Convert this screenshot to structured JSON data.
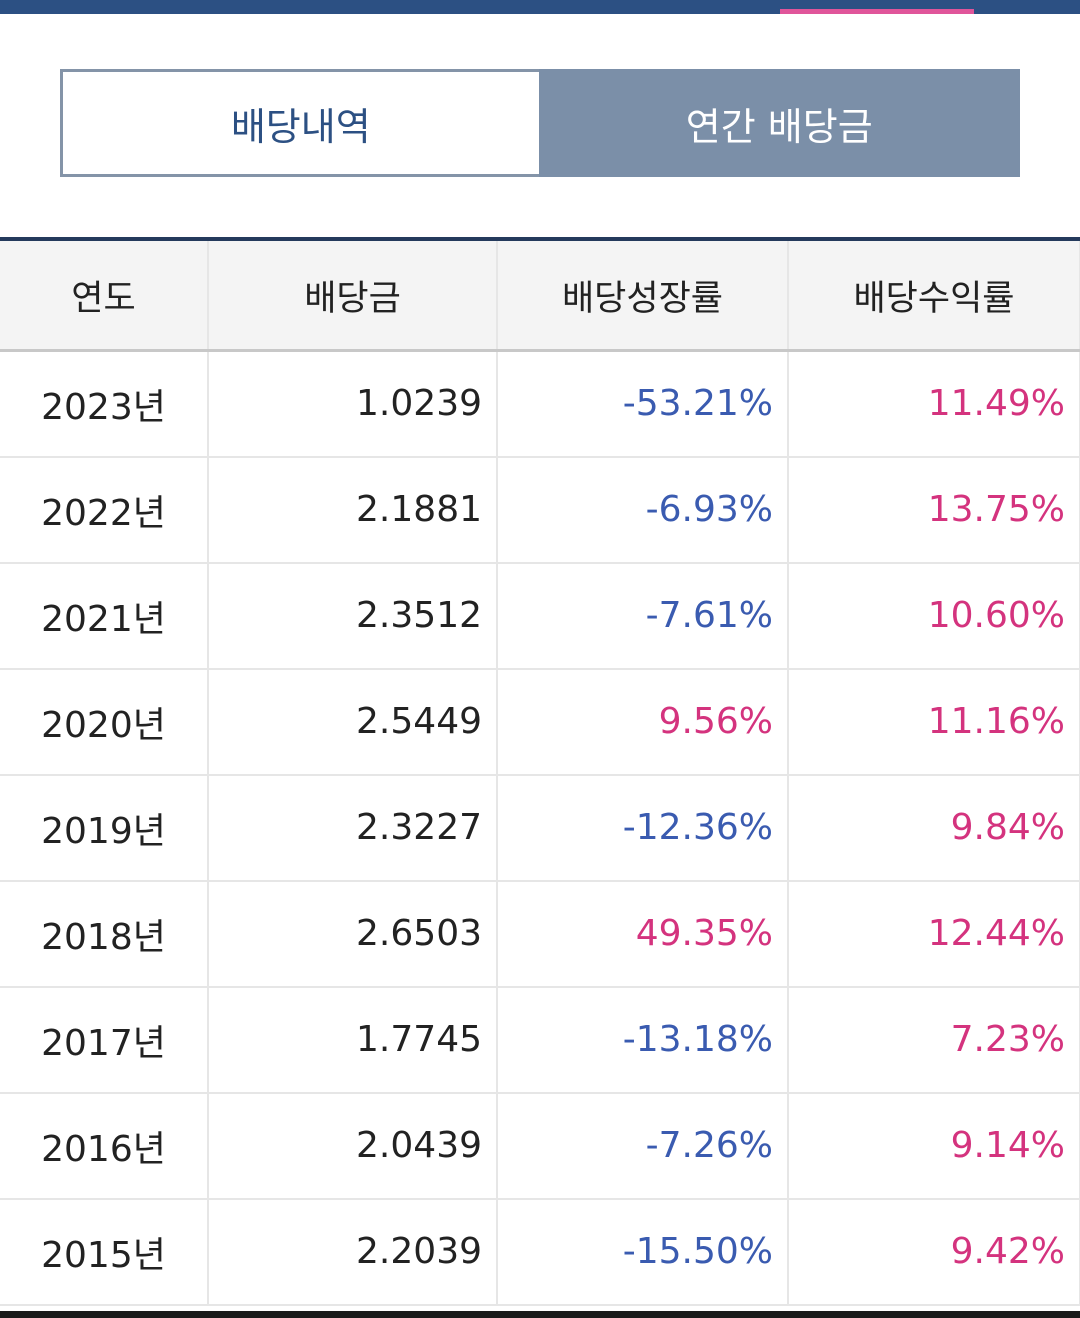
{
  "tabs": [
    {
      "label": "배당내역",
      "active": false
    },
    {
      "label": "연간 배당금",
      "active": true
    }
  ],
  "table": {
    "headers": [
      "연도",
      "배당금",
      "배당성장률",
      "배당수익률"
    ],
    "rows": [
      {
        "year": "2023년",
        "dividend": "1.0239",
        "growth": "-53.21%",
        "yield": "11.49%"
      },
      {
        "year": "2022년",
        "dividend": "2.1881",
        "growth": "-6.93%",
        "yield": "13.75%"
      },
      {
        "year": "2021년",
        "dividend": "2.3512",
        "growth": "-7.61%",
        "yield": "10.60%"
      },
      {
        "year": "2020년",
        "dividend": "2.5449",
        "growth": "9.56%",
        "yield": "11.16%"
      },
      {
        "year": "2019년",
        "dividend": "2.3227",
        "growth": "-12.36%",
        "yield": "9.84%"
      },
      {
        "year": "2018년",
        "dividend": "2.6503",
        "growth": "49.35%",
        "yield": "12.44%"
      },
      {
        "year": "2017년",
        "dividend": "1.7745",
        "growth": "-13.18%",
        "yield": "7.23%"
      },
      {
        "year": "2016년",
        "dividend": "2.0439",
        "growth": "-7.26%",
        "yield": "9.14%"
      },
      {
        "year": "2015년",
        "dividend": "2.2039",
        "growth": "-15.50%",
        "yield": "9.42%"
      }
    ]
  },
  "colors": {
    "header_bar": "#2c5083",
    "tab_indicator": "#e0559a",
    "negative": "#3a5bb0",
    "positive": "#d4337e"
  }
}
